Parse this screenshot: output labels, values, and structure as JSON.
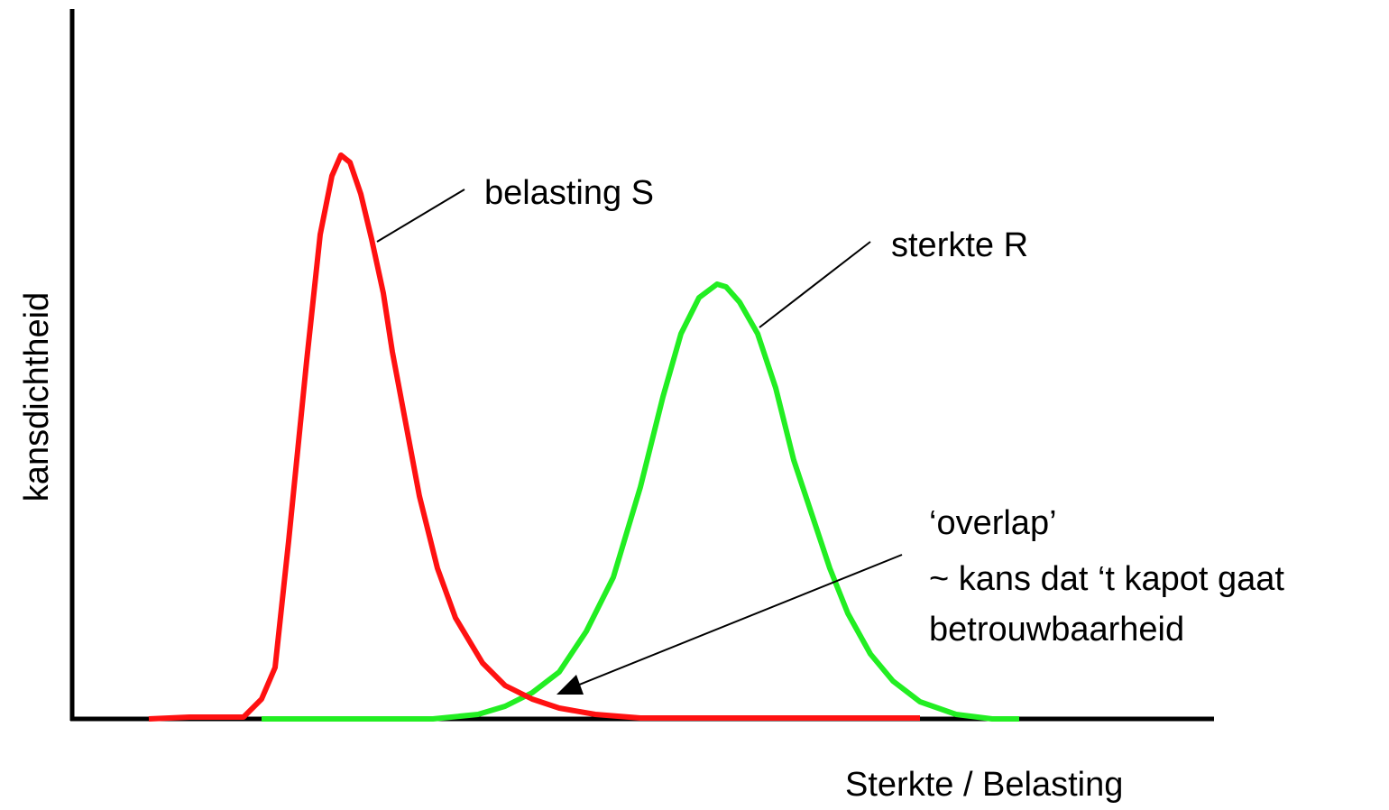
{
  "x_axis_label": "Sterkte / Belasting",
  "y_axis_label": "kansdichtheid",
  "curves": [
    {
      "label": "belasting S"
    },
    {
      "label": "sterkte R"
    }
  ],
  "annotation": {
    "lines": [
      "‘overlap’",
      "~ kans dat ‘t kapot gaat",
      "betrouwbaarheid"
    ]
  }
}
